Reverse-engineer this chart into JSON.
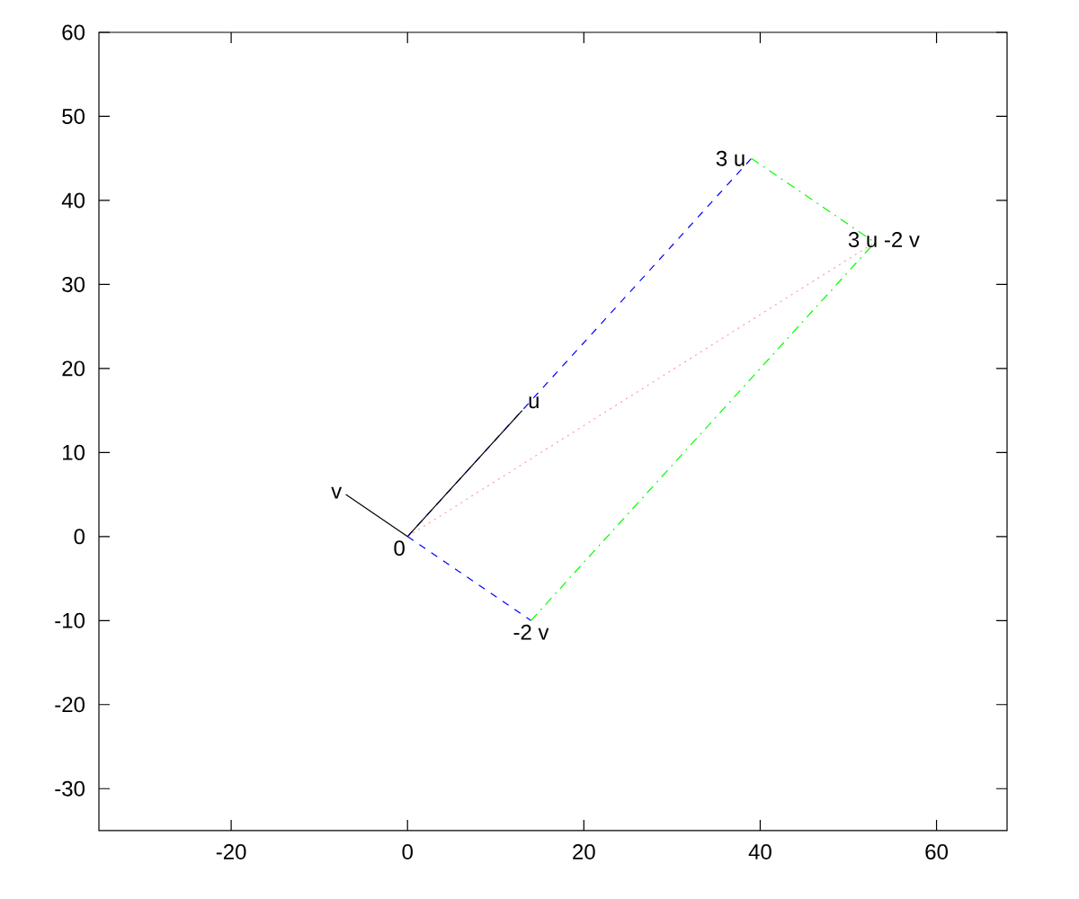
{
  "chart_data": {
    "type": "line",
    "xlim": [
      -35,
      68
    ],
    "ylim": [
      -35,
      60
    ],
    "xticks": [
      -20,
      0,
      20,
      40,
      60
    ],
    "yticks": [
      -30,
      -20,
      -10,
      0,
      10,
      20,
      30,
      40,
      50,
      60
    ],
    "grid": false,
    "marker": "none",
    "series": [
      {
        "color": "#0000ff",
        "line_style": "dashed",
        "x": [
          0,
          39
        ],
        "values": [
          0,
          45
        ]
      },
      {
        "color": "#0000ff",
        "line_style": "dashed",
        "x": [
          0,
          14
        ],
        "values": [
          0,
          -10
        ]
      },
      {
        "color": "#00ff00",
        "line_style": "dashdot",
        "x": [
          39,
          53
        ],
        "values": [
          45,
          35
        ]
      },
      {
        "color": "#00ff00",
        "line_style": "dashdot",
        "x": [
          14,
          53
        ],
        "values": [
          -10,
          35
        ]
      },
      {
        "color": "#ff9999",
        "line_style": "dotted",
        "x": [
          0,
          53
        ],
        "values": [
          0,
          35
        ]
      },
      {
        "color": "#000000",
        "line_style": "solid",
        "x": [
          0,
          13
        ],
        "values": [
          0,
          15
        ]
      },
      {
        "color": "#000000",
        "line_style": "solid",
        "x": [
          0,
          -7
        ],
        "values": [
          0,
          5
        ]
      }
    ],
    "annotations": [
      {
        "text": "0",
        "x": 0,
        "y": 0
      },
      {
        "text": "u",
        "x": 13,
        "y": 15
      },
      {
        "text": "v",
        "x": -7,
        "y": 5
      },
      {
        "text": "3 u",
        "x": 39,
        "y": 45
      },
      {
        "text": "-2 v",
        "x": 14,
        "y": -10
      },
      {
        "text": "3 u -2 v",
        "x": 53,
        "y": 35
      }
    ]
  }
}
